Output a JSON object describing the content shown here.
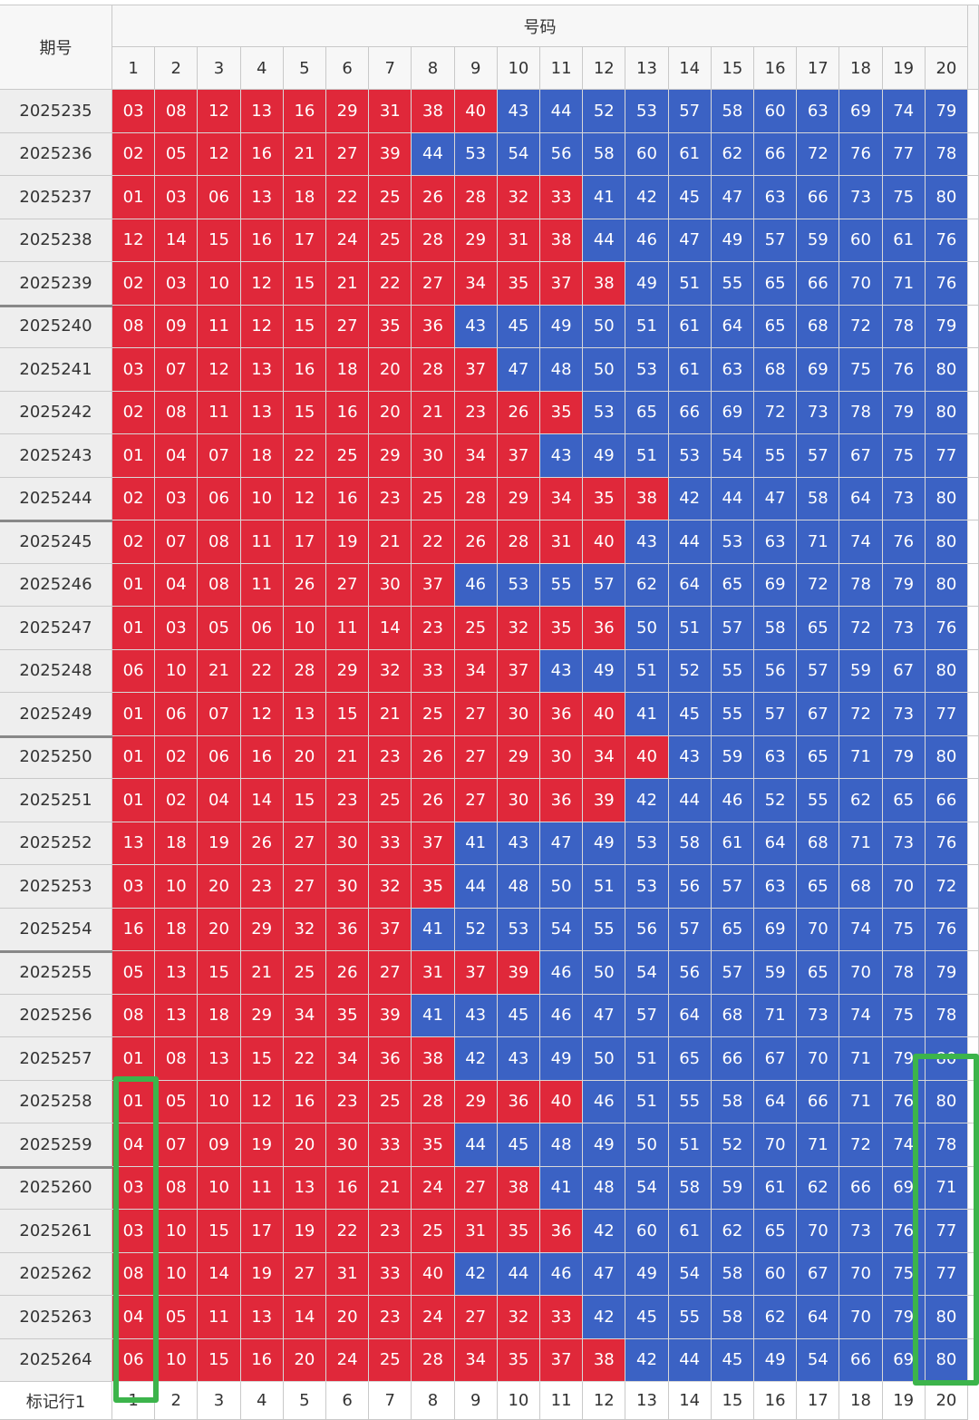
{
  "header": {
    "period": "期号",
    "numbers": "号码",
    "columns": [
      "1",
      "2",
      "3",
      "4",
      "5",
      "6",
      "7",
      "8",
      "9",
      "10",
      "11",
      "12",
      "13",
      "14",
      "15",
      "16",
      "17",
      "18",
      "19",
      "20"
    ]
  },
  "rows": [
    {
      "period": "2025235",
      "cells": [
        "03",
        "08",
        "12",
        "13",
        "16",
        "29",
        "31",
        "38",
        "40",
        "43",
        "44",
        "52",
        "53",
        "57",
        "58",
        "60",
        "63",
        "69",
        "74",
        "79"
      ]
    },
    {
      "period": "2025236",
      "cells": [
        "02",
        "05",
        "12",
        "16",
        "21",
        "27",
        "39",
        "44",
        "53",
        "54",
        "56",
        "58",
        "60",
        "61",
        "62",
        "66",
        "72",
        "76",
        "77",
        "78"
      ]
    },
    {
      "period": "2025237",
      "cells": [
        "01",
        "03",
        "06",
        "13",
        "18",
        "22",
        "25",
        "26",
        "28",
        "32",
        "33",
        "41",
        "42",
        "45",
        "47",
        "63",
        "66",
        "73",
        "75",
        "80"
      ]
    },
    {
      "period": "2025238",
      "cells": [
        "12",
        "14",
        "15",
        "16",
        "17",
        "24",
        "25",
        "28",
        "29",
        "31",
        "38",
        "44",
        "46",
        "47",
        "49",
        "57",
        "59",
        "60",
        "61",
        "76"
      ]
    },
    {
      "period": "2025239",
      "cells": [
        "02",
        "03",
        "10",
        "12",
        "15",
        "21",
        "22",
        "27",
        "34",
        "35",
        "37",
        "38",
        "49",
        "51",
        "55",
        "65",
        "66",
        "70",
        "71",
        "76"
      ]
    },
    {
      "period": "2025240",
      "cells": [
        "08",
        "09",
        "11",
        "12",
        "15",
        "27",
        "35",
        "36",
        "43",
        "45",
        "49",
        "50",
        "51",
        "61",
        "64",
        "65",
        "68",
        "72",
        "78",
        "79"
      ]
    },
    {
      "period": "2025241",
      "cells": [
        "03",
        "07",
        "12",
        "13",
        "16",
        "18",
        "20",
        "28",
        "37",
        "47",
        "48",
        "50",
        "53",
        "61",
        "63",
        "68",
        "69",
        "75",
        "76",
        "80"
      ]
    },
    {
      "period": "2025242",
      "cells": [
        "02",
        "08",
        "11",
        "13",
        "15",
        "16",
        "20",
        "21",
        "23",
        "26",
        "35",
        "53",
        "65",
        "66",
        "69",
        "72",
        "73",
        "78",
        "79",
        "80"
      ]
    },
    {
      "period": "2025243",
      "cells": [
        "01",
        "04",
        "07",
        "18",
        "22",
        "25",
        "29",
        "30",
        "34",
        "37",
        "43",
        "49",
        "51",
        "53",
        "54",
        "55",
        "57",
        "67",
        "75",
        "77"
      ]
    },
    {
      "period": "2025244",
      "cells": [
        "02",
        "03",
        "06",
        "10",
        "12",
        "16",
        "23",
        "25",
        "28",
        "29",
        "34",
        "35",
        "38",
        "42",
        "44",
        "47",
        "58",
        "64",
        "73",
        "80"
      ]
    },
    {
      "period": "2025245",
      "cells": [
        "02",
        "07",
        "08",
        "11",
        "17",
        "19",
        "21",
        "22",
        "26",
        "28",
        "31",
        "40",
        "43",
        "44",
        "53",
        "63",
        "71",
        "74",
        "76",
        "80"
      ]
    },
    {
      "period": "2025246",
      "cells": [
        "01",
        "04",
        "08",
        "11",
        "26",
        "27",
        "30",
        "37",
        "46",
        "53",
        "55",
        "57",
        "62",
        "64",
        "65",
        "69",
        "72",
        "78",
        "79",
        "80"
      ]
    },
    {
      "period": "2025247",
      "cells": [
        "01",
        "03",
        "05",
        "06",
        "10",
        "11",
        "14",
        "23",
        "25",
        "32",
        "35",
        "36",
        "50",
        "51",
        "57",
        "58",
        "65",
        "72",
        "73",
        "76"
      ]
    },
    {
      "period": "2025248",
      "cells": [
        "06",
        "10",
        "21",
        "22",
        "28",
        "29",
        "32",
        "33",
        "34",
        "37",
        "43",
        "49",
        "51",
        "52",
        "55",
        "56",
        "57",
        "59",
        "67",
        "80"
      ]
    },
    {
      "period": "2025249",
      "cells": [
        "01",
        "06",
        "07",
        "12",
        "13",
        "15",
        "21",
        "25",
        "27",
        "30",
        "36",
        "40",
        "41",
        "45",
        "55",
        "57",
        "67",
        "72",
        "73",
        "77"
      ]
    },
    {
      "period": "2025250",
      "cells": [
        "01",
        "02",
        "06",
        "16",
        "20",
        "21",
        "23",
        "26",
        "27",
        "29",
        "30",
        "34",
        "40",
        "43",
        "59",
        "63",
        "65",
        "71",
        "79",
        "80"
      ]
    },
    {
      "period": "2025251",
      "cells": [
        "01",
        "02",
        "04",
        "14",
        "15",
        "23",
        "25",
        "26",
        "27",
        "30",
        "36",
        "39",
        "42",
        "44",
        "46",
        "52",
        "55",
        "62",
        "65",
        "66"
      ]
    },
    {
      "period": "2025252",
      "cells": [
        "13",
        "18",
        "19",
        "26",
        "27",
        "30",
        "33",
        "37",
        "41",
        "43",
        "47",
        "49",
        "53",
        "58",
        "61",
        "64",
        "68",
        "71",
        "73",
        "76"
      ]
    },
    {
      "period": "2025253",
      "cells": [
        "03",
        "10",
        "20",
        "23",
        "27",
        "30",
        "32",
        "35",
        "44",
        "48",
        "50",
        "51",
        "53",
        "56",
        "57",
        "63",
        "65",
        "68",
        "70",
        "72"
      ]
    },
    {
      "period": "2025254",
      "cells": [
        "16",
        "18",
        "20",
        "29",
        "32",
        "36",
        "37",
        "41",
        "52",
        "53",
        "54",
        "55",
        "56",
        "57",
        "65",
        "69",
        "70",
        "74",
        "75",
        "76"
      ]
    },
    {
      "period": "2025255",
      "cells": [
        "05",
        "13",
        "15",
        "21",
        "25",
        "26",
        "27",
        "31",
        "37",
        "39",
        "46",
        "50",
        "54",
        "56",
        "57",
        "59",
        "65",
        "70",
        "78",
        "79"
      ]
    },
    {
      "period": "2025256",
      "cells": [
        "08",
        "13",
        "18",
        "29",
        "34",
        "35",
        "39",
        "41",
        "43",
        "45",
        "46",
        "47",
        "57",
        "64",
        "68",
        "71",
        "73",
        "74",
        "75",
        "78"
      ]
    },
    {
      "period": "2025257",
      "cells": [
        "01",
        "08",
        "13",
        "15",
        "22",
        "34",
        "36",
        "38",
        "42",
        "43",
        "49",
        "50",
        "51",
        "65",
        "66",
        "67",
        "70",
        "71",
        "79",
        "80"
      ]
    },
    {
      "period": "2025258",
      "cells": [
        "01",
        "05",
        "10",
        "12",
        "16",
        "23",
        "25",
        "28",
        "29",
        "36",
        "40",
        "46",
        "51",
        "55",
        "58",
        "64",
        "66",
        "71",
        "76",
        "80"
      ]
    },
    {
      "period": "2025259",
      "cells": [
        "04",
        "07",
        "09",
        "19",
        "20",
        "30",
        "33",
        "35",
        "44",
        "45",
        "48",
        "49",
        "50",
        "51",
        "52",
        "70",
        "71",
        "72",
        "74",
        "78"
      ]
    },
    {
      "period": "2025260",
      "cells": [
        "03",
        "08",
        "10",
        "11",
        "13",
        "16",
        "21",
        "24",
        "27",
        "38",
        "41",
        "48",
        "54",
        "58",
        "59",
        "61",
        "62",
        "66",
        "69",
        "71"
      ]
    },
    {
      "period": "2025261",
      "cells": [
        "03",
        "10",
        "15",
        "17",
        "19",
        "22",
        "23",
        "25",
        "31",
        "35",
        "36",
        "42",
        "60",
        "61",
        "62",
        "65",
        "70",
        "73",
        "76",
        "77"
      ]
    },
    {
      "period": "2025262",
      "cells": [
        "08",
        "10",
        "14",
        "19",
        "27",
        "31",
        "33",
        "40",
        "42",
        "44",
        "46",
        "47",
        "49",
        "54",
        "58",
        "60",
        "67",
        "70",
        "75",
        "77"
      ]
    },
    {
      "period": "2025263",
      "cells": [
        "04",
        "05",
        "11",
        "13",
        "14",
        "20",
        "23",
        "24",
        "27",
        "32",
        "33",
        "42",
        "45",
        "55",
        "58",
        "62",
        "64",
        "70",
        "79",
        "80"
      ]
    },
    {
      "period": "2025264",
      "cells": [
        "06",
        "10",
        "15",
        "16",
        "20",
        "24",
        "25",
        "28",
        "34",
        "35",
        "37",
        "38",
        "42",
        "44",
        "45",
        "49",
        "54",
        "66",
        "69",
        "80"
      ]
    }
  ],
  "footer": {
    "label": "标记行1",
    "columns": [
      "1",
      "2",
      "3",
      "4",
      "5",
      "6",
      "7",
      "8",
      "9",
      "10",
      "11",
      "12",
      "13",
      "14",
      "15",
      "16",
      "17",
      "18",
      "19",
      "20"
    ]
  }
}
